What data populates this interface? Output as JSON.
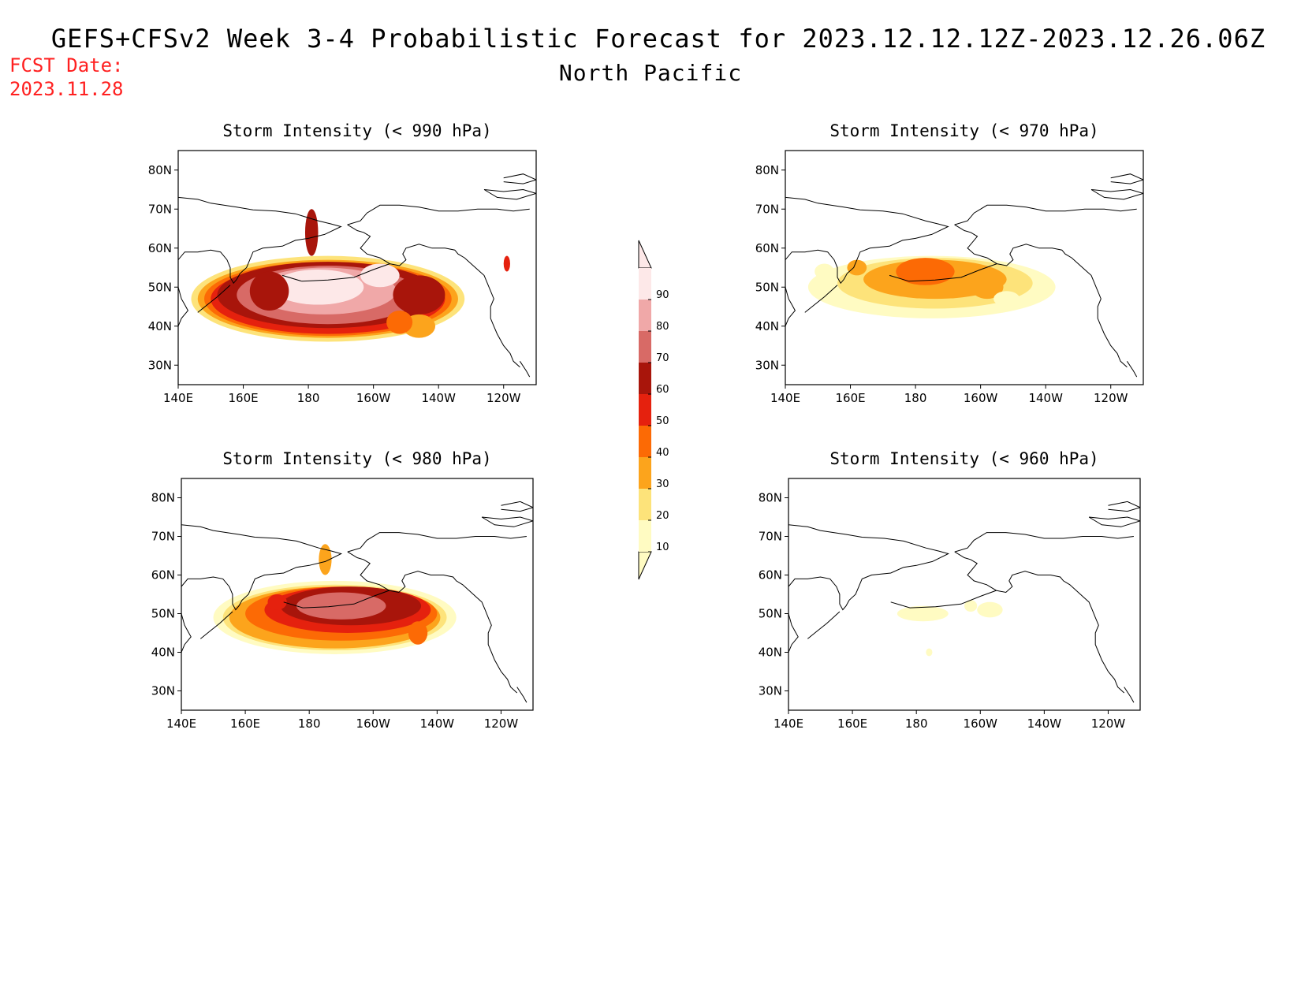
{
  "header": {
    "title": "GEFS+CFSv2 Week 3-4 Probabilistic Forecast for 2023.12.12.12Z-2023.12.26.06Z",
    "subtitle": "North Pacific",
    "fcst_label": "FCST Date:",
    "fcst_date": "2023.11.28"
  },
  "colorbar": {
    "levels": [
      "10",
      "20",
      "30",
      "40",
      "50",
      "60",
      "70",
      "80",
      "90"
    ],
    "colors": [
      "#fffbc2",
      "#fde37a",
      "#fca41c",
      "#fc6a05",
      "#e5210e",
      "#a8150b",
      "#d86a66",
      "#f0a8a8",
      "#fde8e8"
    ]
  },
  "chart_data": [
    {
      "type": "heatmap",
      "title": "Storm Intensity (< 990 hPa)",
      "x_ticks": [
        "140E",
        "160E",
        "180",
        "160W",
        "140W",
        "120W"
      ],
      "y_ticks": [
        "80N",
        "70N",
        "60N",
        "50N",
        "40N",
        "30N"
      ],
      "peak_probability_percent": 90
    },
    {
      "type": "heatmap",
      "title": "Storm Intensity (< 970 hPa)",
      "x_ticks": [
        "140E",
        "160E",
        "180",
        "160W",
        "140W",
        "120W"
      ],
      "y_ticks": [
        "80N",
        "70N",
        "60N",
        "50N",
        "40N",
        "30N"
      ],
      "peak_probability_percent": 40
    },
    {
      "type": "heatmap",
      "title": "Storm Intensity (< 980 hPa)",
      "x_ticks": [
        "140E",
        "160E",
        "180",
        "160W",
        "140W",
        "120W"
      ],
      "y_ticks": [
        "80N",
        "70N",
        "60N",
        "50N",
        "40N",
        "30N"
      ],
      "peak_probability_percent": 80
    },
    {
      "type": "heatmap",
      "title": "Storm Intensity (< 960 hPa)",
      "x_ticks": [
        "140E",
        "160E",
        "180",
        "160W",
        "140W",
        "120W"
      ],
      "y_ticks": [
        "80N",
        "70N",
        "60N",
        "50N",
        "40N",
        "30N"
      ],
      "peak_probability_percent": 20
    }
  ]
}
